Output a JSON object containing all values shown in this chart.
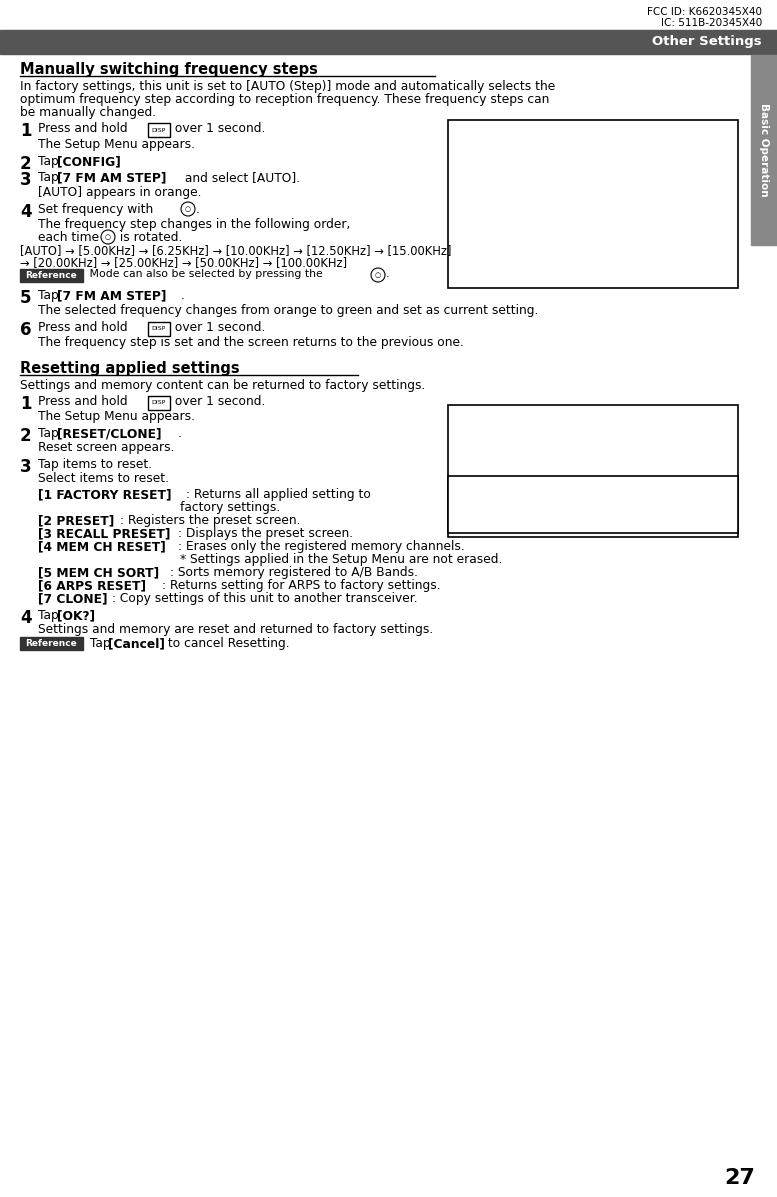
{
  "page_width": 7.77,
  "page_height": 11.97,
  "bg_color": "#ffffff",
  "header_bar_color": "#555555",
  "header_text": "Other Settings",
  "header_text_color": "#ffffff",
  "fcc_line1": "FCC ID: K6620345X40",
  "fcc_line2": "IC: 511B-20345X40",
  "tab_color": "#888888",
  "tab_text": "Basic Operation",
  "tab_text_color": "#ffffff",
  "section1_title": "Manually switching frequency steps",
  "section1_intro_lines": [
    "In factory settings, this unit is set to [AUTO (Step)] mode and automatically selects the",
    "optimum frequency step according to reception frequency. These frequency steps can",
    "be manually changed."
  ],
  "section2_title": "Resetting applied settings",
  "section2_intro": "Settings and memory content can be returned to factory settings.",
  "page_number": "27",
  "reference_bg": "#333333",
  "reference_text_color": "#ffffff",
  "reference_label": "Reference"
}
